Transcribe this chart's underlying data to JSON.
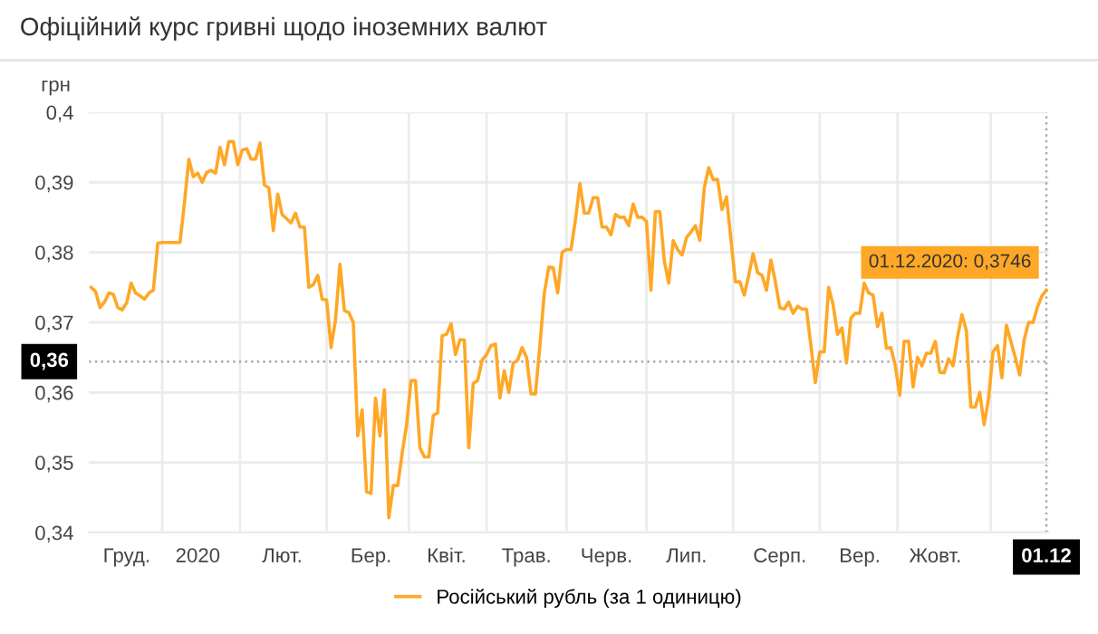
{
  "chart_data": {
    "type": "line",
    "title": "Офіційний курс гривні щодо іноземних валют",
    "ylabel": "грн",
    "categories": [
      null,
      null,
      null,
      null,
      null,
      null,
      null,
      null,
      "Груд.",
      null,
      null,
      null,
      null,
      null,
      null,
      null,
      null,
      null,
      null,
      null,
      null,
      null,
      null,
      null,
      "2020",
      null,
      null,
      null,
      null,
      null,
      null,
      null,
      null,
      null,
      null,
      null,
      null,
      null,
      null,
      null,
      null,
      null,
      null,
      "Лют.",
      null,
      null,
      null,
      null,
      null,
      null,
      null,
      null,
      null,
      null,
      null,
      null,
      null,
      null,
      null,
      null,
      null,
      null,
      null,
      "Бер.",
      null,
      null,
      null,
      null,
      null,
      null,
      null,
      null,
      null,
      null,
      null,
      null,
      null,
      null,
      null,
      null,
      "Квіт.",
      null,
      null,
      null,
      null,
      null,
      null,
      null,
      null,
      null,
      null,
      null,
      null,
      null,
      null,
      null,
      null,
      null,
      "Трав.",
      null,
      null,
      null,
      null,
      null,
      null,
      null,
      null,
      null,
      null,
      null,
      null,
      null,
      null,
      null,
      null,
      null,
      "Черв.",
      null,
      null,
      null,
      null,
      null,
      null,
      null,
      null,
      null,
      null,
      null,
      null,
      null,
      null,
      null,
      null,
      null,
      "Лип.",
      null,
      null,
      null,
      null,
      null,
      null,
      null,
      null,
      null,
      null,
      null,
      null,
      null,
      null,
      null,
      null,
      null,
      null,
      null,
      null,
      "Серп.",
      null,
      null,
      null,
      null,
      null,
      null,
      null,
      null,
      null,
      null,
      null,
      null,
      null,
      null,
      null,
      null,
      null,
      "Вер.",
      null,
      null,
      null,
      null,
      null,
      null,
      null,
      null,
      null,
      null,
      null,
      null,
      null,
      null,
      null,
      null,
      "Жовт.",
      null,
      null,
      null,
      null,
      null,
      null,
      null,
      null,
      null,
      null,
      null,
      null,
      null,
      null,
      null,
      null,
      null,
      null,
      null,
      null,
      null,
      null,
      null,
      null,
      "01.12"
    ],
    "series": [
      {
        "name": "Російський рубль (за 1 одиницю)",
        "color": "#ffa726",
        "values": [
          0.375,
          0.3744,
          0.3721,
          0.3729,
          0.3742,
          0.374,
          0.3721,
          0.3718,
          0.3728,
          0.3756,
          0.3742,
          0.3738,
          0.3733,
          0.3742,
          0.3746,
          0.3813,
          0.3814,
          0.3814,
          0.3814,
          0.3814,
          0.3814,
          0.3871,
          0.3933,
          0.3908,
          0.3913,
          0.39,
          0.3914,
          0.3917,
          0.3913,
          0.395,
          0.3925,
          0.3958,
          0.3958,
          0.3925,
          0.3946,
          0.3948,
          0.3933,
          0.3933,
          0.3956,
          0.3896,
          0.3892,
          0.3831,
          0.3883,
          0.3854,
          0.3848,
          0.3842,
          0.3856,
          0.3836,
          0.3836,
          0.375,
          0.3754,
          0.3767,
          0.3733,
          0.3732,
          0.3664,
          0.3704,
          0.3783,
          0.3717,
          0.3714,
          0.37,
          0.3538,
          0.3575,
          0.3458,
          0.3456,
          0.3592,
          0.3538,
          0.3604,
          0.3421,
          0.3467,
          0.3467,
          0.3513,
          0.3554,
          0.3617,
          0.3617,
          0.3521,
          0.3508,
          0.3508,
          0.3567,
          0.3571,
          0.3681,
          0.3683,
          0.3698,
          0.3654,
          0.3675,
          0.3675,
          0.3521,
          0.3613,
          0.3617,
          0.3646,
          0.3654,
          0.3667,
          0.3669,
          0.3592,
          0.3631,
          0.36,
          0.3642,
          0.3646,
          0.3664,
          0.365,
          0.3598,
          0.3598,
          0.3667,
          0.3742,
          0.3779,
          0.3778,
          0.3742,
          0.38,
          0.3804,
          0.3804,
          0.3846,
          0.3898,
          0.3856,
          0.3856,
          0.3878,
          0.3878,
          0.3836,
          0.3836,
          0.3825,
          0.3854,
          0.385,
          0.385,
          0.3838,
          0.3869,
          0.385,
          0.385,
          0.3844,
          0.3746,
          0.3858,
          0.3858,
          0.3788,
          0.3756,
          0.3817,
          0.3804,
          0.3796,
          0.3821,
          0.3829,
          0.3838,
          0.3817,
          0.3892,
          0.3921,
          0.3904,
          0.3904,
          0.3861,
          0.3879,
          0.3819,
          0.3758,
          0.3758,
          0.3739,
          0.3767,
          0.3798,
          0.3771,
          0.3767,
          0.3746,
          0.3789,
          0.3758,
          0.3721,
          0.3719,
          0.3729,
          0.3713,
          0.3723,
          0.3719,
          0.3719,
          0.3667,
          0.3614,
          0.3658,
          0.3658,
          0.375,
          0.3725,
          0.3683,
          0.3692,
          0.3642,
          0.3706,
          0.3713,
          0.3713,
          0.3756,
          0.3742,
          0.3739,
          0.3694,
          0.3713,
          0.3663,
          0.3664,
          0.3638,
          0.3596,
          0.3673,
          0.3673,
          0.3608,
          0.365,
          0.3638,
          0.3656,
          0.3656,
          0.3673,
          0.3629,
          0.3628,
          0.3648,
          0.3638,
          0.3679,
          0.3711,
          0.3688,
          0.3579,
          0.3579,
          0.36,
          0.3554,
          0.3592,
          0.3658,
          0.3667,
          0.3621,
          0.3696,
          0.3673,
          0.365,
          0.3625,
          0.3675,
          0.37,
          0.37,
          0.3722,
          0.3738,
          0.3746
        ]
      }
    ],
    "ylim": [
      0.34,
      0.4
    ],
    "yticks": [
      {
        "value": 0.34,
        "label": "0,34"
      },
      {
        "value": 0.35,
        "label": "0,35"
      },
      {
        "value": 0.36,
        "label": "0,36"
      },
      {
        "value": 0.37,
        "label": "0,37"
      },
      {
        "value": 0.38,
        "label": "0,38"
      },
      {
        "value": 0.39,
        "label": "0,39"
      },
      {
        "value": 0.4,
        "label": "0,4"
      }
    ],
    "ref_lines": [
      {
        "axis": "y",
        "value": 0.3644,
        "label": "0,36",
        "line_style": "dotted"
      },
      {
        "axis": "x",
        "value": "01.12",
        "line_style": "dotted"
      }
    ],
    "annotations": [
      {
        "text": "01.12.2020: 0,3746",
        "x": "01.12",
        "y": 0.3746
      }
    ],
    "grid": true,
    "legend": "bottom",
    "marker": "none",
    "line_style": "solid"
  }
}
